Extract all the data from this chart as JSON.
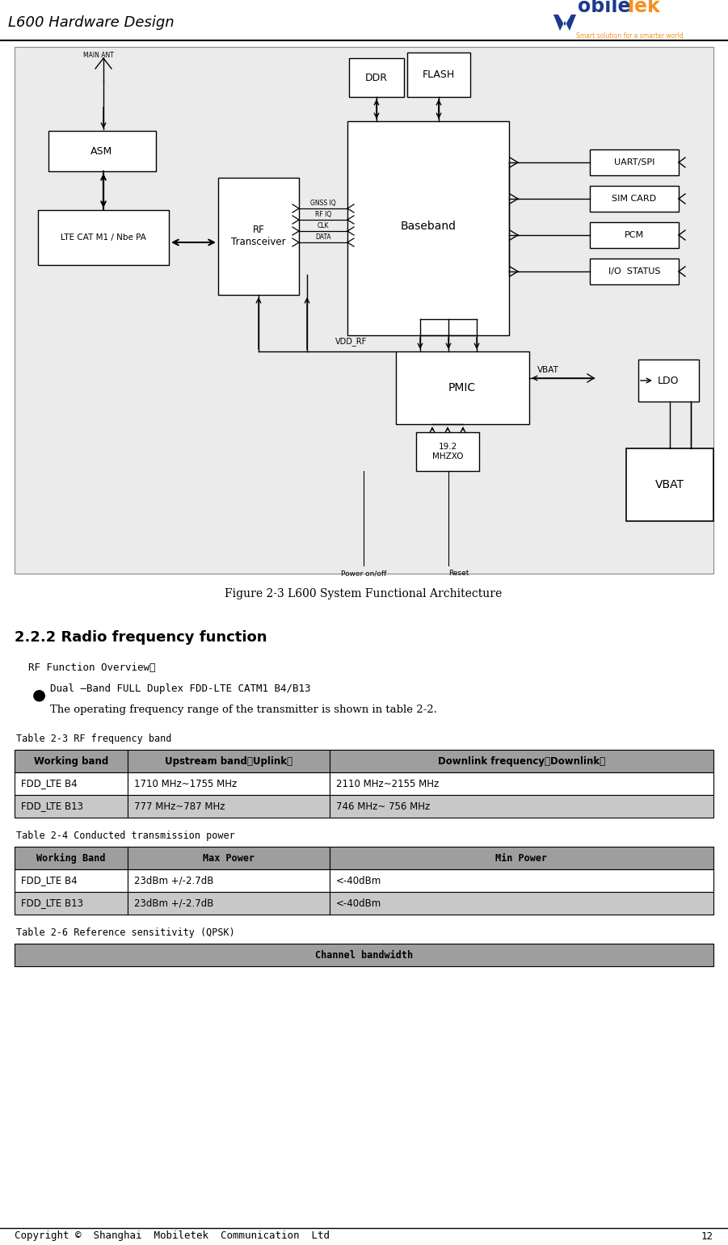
{
  "header_title": "L600 Hardware Design",
  "figure_caption": "Figure 2-3 L600 System Functional Architecture",
  "section_title": "2.2.2 Radio frequency function",
  "rf_overview_label": "RF Function Overview：",
  "bullet_text": "Dual –Band FULL Duplex FDD-LTE CATM1 B4/B13",
  "operating_freq_text": "The operating frequency range of the transmitter is shown in table 2-2.",
  "table23_label": "Table 2-3 RF frequency band",
  "table23_headers": [
    "Working band",
    "Upstream band（Uplink）",
    "Downlink frequency（Downlink）"
  ],
  "table23_rows": [
    [
      "FDD_LTE B4",
      "1710 MHz~1755 MHz",
      "2110 MHz~2155 MHz"
    ],
    [
      "FDD_LTE B13",
      "777 MHz~787 MHz",
      "746 MHz~ 756 MHz"
    ]
  ],
  "table24_label": "Table 2-4 Conducted transmission power",
  "table24_headers": [
    "Working Band",
    "Max Power",
    "Min Power"
  ],
  "table24_rows": [
    [
      "FDD_LTE B4",
      "23dBm +/-2.7dB",
      "<-40dBm"
    ],
    [
      "FDD_LTE B13",
      "23dBm +/-2.7dB",
      "<-40dBm"
    ]
  ],
  "table26_label": "Table 2-6 Reference sensitivity (QPSK)",
  "table26_headers": [
    "Channel bandwidth"
  ],
  "footer_text": "Copyright ©  Shanghai  Mobiletek  Communication  Ltd",
  "footer_page": "12",
  "diag_bg": "#ebebeb",
  "box_fill": "#ffffff",
  "table_hdr_bg": "#9e9e9e",
  "table_row_odd": "#ffffff",
  "table_row_even": "#c8c8c8"
}
